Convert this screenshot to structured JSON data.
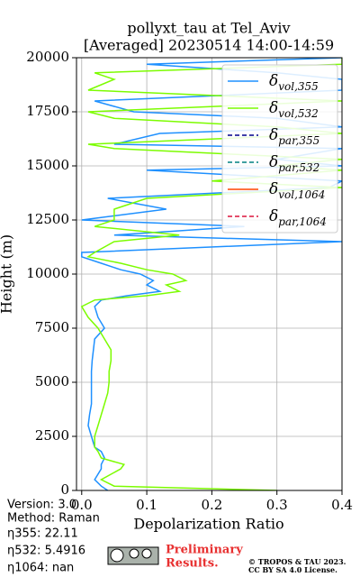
{
  "chart_data": {
    "type": "line",
    "title": "pollyxt_tau at Tel_Aviv",
    "subtitle": "[Averaged] 20230514 14:00-14:59",
    "xlabel": "Depolarization Ratio",
    "ylabel": "Height (m)",
    "xlim": [
      -0.008,
      0.4
    ],
    "xticks": [
      {
        "value": 0,
        "label": "0.0"
      },
      0.1,
      0.2,
      0.3,
      0.4
    ],
    "ylim": [
      0,
      20000
    ],
    "yticks": [
      0,
      2500,
      5000,
      7500,
      10000,
      12500,
      15000,
      17500,
      20000
    ],
    "grid": true,
    "legend": "upper right",
    "heights": [
      0,
      200,
      500,
      1000,
      1200,
      1500,
      1800,
      2000,
      2500,
      3000,
      3500,
      4000,
      4500,
      5000,
      5500,
      6000,
      6500,
      7000,
      7500,
      8000,
      8500,
      8800,
      9000,
      9200,
      9500,
      9700,
      10000,
      10200,
      10500,
      10800,
      11000,
      11500,
      11800,
      12200,
      12500,
      13000,
      13500,
      14000,
      14300,
      14800,
      15000,
      15300,
      15800,
      16000,
      16500,
      16800,
      17200,
      17500,
      18000,
      18500,
      19000,
      19300,
      19700,
      20000
    ],
    "series": [
      {
        "name": "δvol,355",
        "color": "#1e90ff",
        "dash": "solid",
        "values": [
          0.04,
          0.03,
          0.02,
          0.03,
          0.03,
          0.035,
          0.03,
          0.02,
          0.015,
          0.01,
          0.012,
          0.015,
          0.015,
          0.015,
          0.015,
          0.016,
          0.018,
          0.02,
          0.035,
          0.025,
          0.02,
          0.03,
          0.07,
          0.12,
          0.1,
          0.11,
          0.09,
          0.06,
          0.03,
          0.0,
          0.0,
          0.4,
          0.05,
          0.25,
          0.0,
          0.13,
          0.04,
          0.38,
          0.4,
          0.1,
          0.4,
          0.3,
          0.4,
          0.05,
          0.12,
          0.4,
          0.3,
          0.08,
          0.02,
          0.4,
          0.4,
          0.3,
          0.1,
          0.4
        ]
      },
      {
        "name": "δvol,532",
        "color": "#7cfc00",
        "dash": "solid",
        "values": [
          0.3,
          0.05,
          0.03,
          0.06,
          0.065,
          0.03,
          0.025,
          0.02,
          0.02,
          0.025,
          0.03,
          0.035,
          0.04,
          0.042,
          0.042,
          0.045,
          0.045,
          0.035,
          0.025,
          0.01,
          0.0,
          0.02,
          0.1,
          0.15,
          0.13,
          0.16,
          0.14,
          0.1,
          0.06,
          0.01,
          0.02,
          0.05,
          0.15,
          0.02,
          0.05,
          0.05,
          0.1,
          0.4,
          0.2,
          0.4,
          0.3,
          0.4,
          0.05,
          0.01,
          0.4,
          0.3,
          0.05,
          0.01,
          0.4,
          0.01,
          0.05,
          0.02,
          0.4,
          0.4
        ]
      },
      {
        "name": "δpar,355",
        "color": "#00008b",
        "dash": "dashed",
        "values": []
      },
      {
        "name": "δpar,532",
        "color": "#008080",
        "dash": "dashed",
        "values": []
      },
      {
        "name": "δvol,1064",
        "color": "#ff4500",
        "dash": "solid",
        "values": []
      },
      {
        "name": "δpar,1064",
        "color": "#dc143c",
        "dash": "dashed",
        "values": []
      }
    ]
  },
  "info": [
    "Version: 3.0",
    "Method: Raman",
    "η355:  22.11",
    "η532: 5.4916",
    "η1064:    nan"
  ],
  "footer": {
    "preliminary": [
      "Preliminary",
      "Results."
    ],
    "license": [
      "© TROPOS & TAU 2023.",
      "CC BY SA 4.0 License."
    ]
  }
}
